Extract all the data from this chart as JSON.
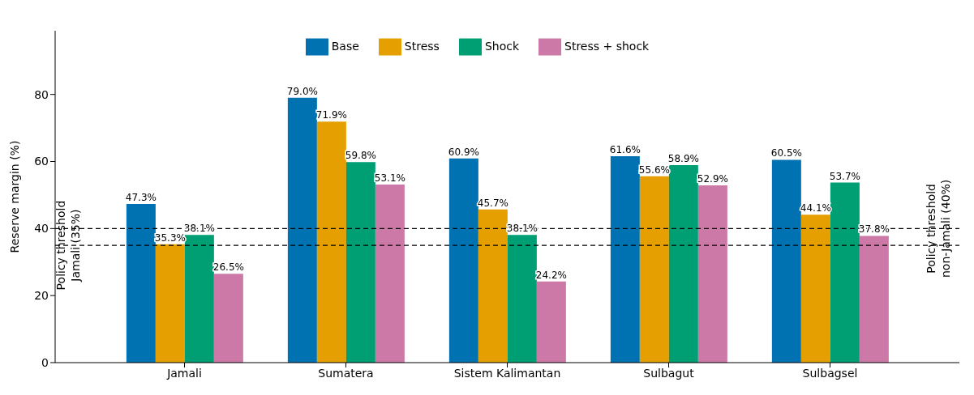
{
  "chart_data": {
    "type": "bar",
    "ylabel": "Reserve margin (%)",
    "categories": [
      "Jamali",
      "Sumatera",
      "Sistem Kalimantan",
      "Sulbagut",
      "Sulbagsel"
    ],
    "series": [
      {
        "name": "Base",
        "color": "#0072b2",
        "values": [
          47.3,
          79.0,
          60.9,
          61.6,
          60.5
        ],
        "value_labels": [
          "47.3%",
          "79.0%",
          "60.9%",
          "61.6%",
          "60.5%"
        ]
      },
      {
        "name": "Stress",
        "color": "#e69f00",
        "values": [
          35.3,
          71.9,
          45.7,
          55.6,
          44.1
        ],
        "value_labels": [
          "35.3%",
          "71.9%",
          "45.7%",
          "55.6%",
          "44.1%"
        ]
      },
      {
        "name": "Shock",
        "color": "#009e73",
        "values": [
          38.1,
          59.8,
          38.1,
          58.9,
          53.7
        ],
        "value_labels": [
          "38.1%",
          "59.8%",
          "38.1%",
          "58.9%",
          "53.7%"
        ]
      },
      {
        "name": "Stress + shock",
        "color": "#cc79a7",
        "values": [
          26.5,
          53.1,
          24.2,
          52.9,
          37.8
        ],
        "value_labels": [
          "26.5%",
          "53.1%",
          "24.2%",
          "52.9%",
          "37.8%"
        ]
      }
    ],
    "ylim": [
      0,
      99
    ],
    "yticks": [
      0,
      20,
      40,
      60,
      80
    ],
    "grid": false,
    "legend": "top",
    "ref_lines": [
      {
        "axis": "y",
        "value": 35,
        "label": "Policy threshold\nJamali (35%)",
        "color": "#000000",
        "line_style": "dashed"
      },
      {
        "axis": "y",
        "value": 40,
        "label": "Policy threshold\nnon-Jamali (40%)",
        "color": "#000000",
        "line_style": "dashed"
      }
    ]
  }
}
